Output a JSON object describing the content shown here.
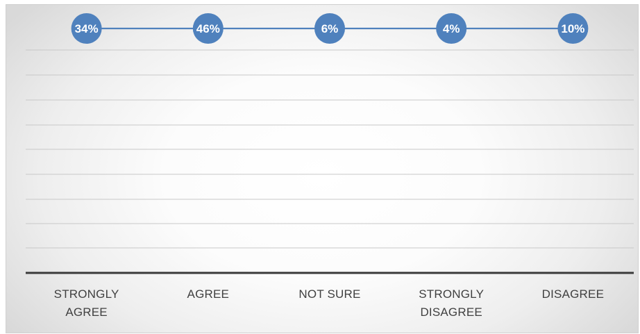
{
  "chart_data": {
    "type": "line",
    "categories": [
      "STRONGLY\nAGREE",
      "AGREE",
      "NOT SURE",
      "STRONGLY\nDISAGREE",
      "DISAGREE"
    ],
    "series": [
      {
        "values": [
          34,
          46,
          6,
          4,
          10
        ],
        "data_labels": [
          "34%",
          "46%",
          "6%",
          "4%",
          "10%"
        ],
        "color": "#4f81bd"
      }
    ],
    "grid": true,
    "legend": "none",
    "note": "all markers drawn on a single horizontal line"
  }
}
